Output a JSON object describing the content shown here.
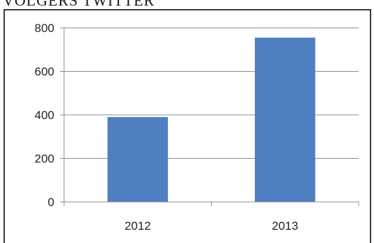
{
  "header": {
    "title": "VOLGERS TWITTER"
  },
  "colors": {
    "bar": "#4F7FC0",
    "grid": "#8c8c8c",
    "axis": "#8c8c8c"
  },
  "chart_data": {
    "type": "bar",
    "title": "",
    "xlabel": "",
    "ylabel": "",
    "categories": [
      "2012",
      "2013"
    ],
    "values": [
      390,
      755
    ],
    "ylim": [
      0,
      800
    ],
    "yticks": [
      0,
      200,
      400,
      600,
      800
    ],
    "grid": true,
    "legend": "none"
  }
}
